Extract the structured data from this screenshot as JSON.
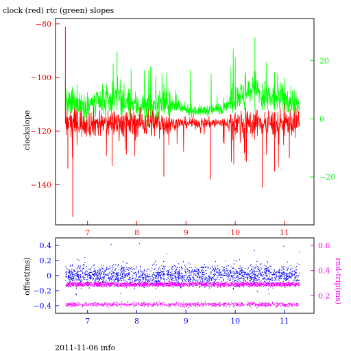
{
  "chart_data": [
    {
      "type": "line",
      "title": "clock (red) rtc (green) slopes",
      "ylabel": "clockslope",
      "xlim": [
        6.35,
        11.6
      ],
      "ylim": [
        -155,
        -78
      ],
      "y2lim": [
        -36.5,
        34.5
      ],
      "x_ticks": [
        7,
        8,
        9,
        10,
        11
      ],
      "y_ticks": [
        -80,
        -100,
        -120,
        -140
      ],
      "y2_ticks": [
        20,
        0,
        -20
      ],
      "colors": {
        "clock": "#ff0000",
        "rtc": "#00ff00",
        "left_axis": "#ff0000",
        "right_axis": "#00ff00",
        "x_axis": "#ff0000"
      },
      "series": [
        {
          "name": "clock",
          "axis": "left",
          "x": [
            6.55,
            6.6,
            6.65,
            6.7,
            6.8,
            7.0,
            7.3,
            7.5,
            7.55,
            7.7,
            8.0,
            8.3,
            8.55,
            8.8,
            9.0,
            9.3,
            9.5,
            9.7,
            9.95,
            10.0,
            10.2,
            10.4,
            10.55,
            10.6,
            10.8,
            11.0,
            11.1,
            11.3
          ],
          "values": [
            -81,
            -134,
            -117,
            -152,
            -113,
            -117,
            -118,
            -133,
            -113,
            -121,
            -117,
            -116,
            -137,
            -117,
            -116,
            -117,
            -138,
            -116,
            -120,
            -113,
            -131,
            -114,
            -141,
            -113,
            -135,
            -115,
            -130,
            -118
          ]
        },
        {
          "name": "rtc",
          "axis": "right",
          "x": [
            6.55,
            6.6,
            6.7,
            6.8,
            7.0,
            7.3,
            7.5,
            7.6,
            7.7,
            8.0,
            8.3,
            8.55,
            8.8,
            9.0,
            9.3,
            9.5,
            9.7,
            9.95,
            10.0,
            10.2,
            10.4,
            10.55,
            10.6,
            10.8,
            11.0,
            11.2,
            11.3
          ],
          "values": [
            14,
            6,
            10,
            7,
            9,
            8,
            13,
            23,
            10,
            7,
            5,
            12,
            6,
            3,
            2,
            3,
            4,
            12,
            21,
            15,
            28,
            12,
            13,
            16,
            14,
            10,
            5
          ]
        }
      ]
    },
    {
      "type": "scatter",
      "ylabel": "offset(ms)",
      "y2label": "rnd-trip(ms)",
      "xlim": [
        6.35,
        11.6
      ],
      "ylim": [
        -0.5,
        0.5
      ],
      "y2lim": [
        0.06,
        0.66
      ],
      "x_ticks": [
        7,
        8,
        9,
        10,
        11
      ],
      "y_ticks": [
        0.4,
        0.2,
        0,
        -0.2,
        -0.4
      ],
      "y2_ticks": [
        0.6,
        0.4,
        0.2
      ],
      "colors": {
        "offset": "#0000ff",
        "rtt": "#ff00ff",
        "left_axis": "#0000ff",
        "right_axis": "#ff00ff",
        "x_axis": "#0000ff"
      },
      "series": [
        {
          "name": "offset",
          "axis": "left",
          "x": [
            6.55,
            11.3
          ],
          "center": 0.0,
          "spread": 0.17
        },
        {
          "name": "rtt",
          "axis": "right",
          "x": [
            6.55,
            11.3
          ],
          "bands": [
            0.29,
            0.13
          ]
        }
      ]
    }
  ],
  "footer": {
    "text": "2011-11-06 info"
  }
}
